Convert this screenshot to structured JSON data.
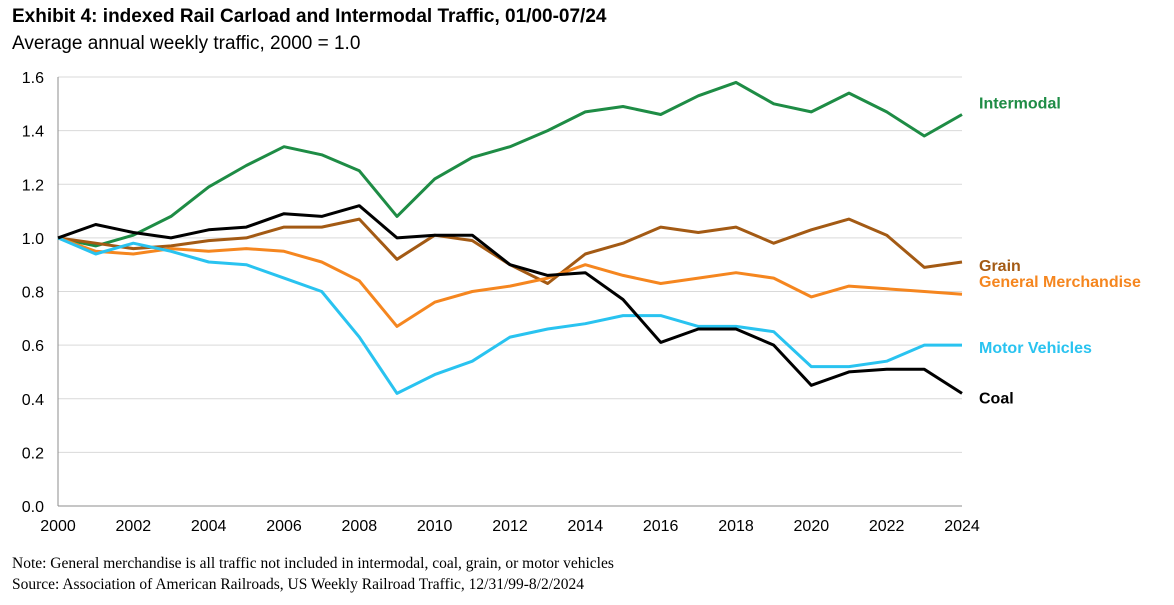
{
  "header": {
    "title": "Exhibit 4: indexed Rail Carload and Intermodal Traffic, 01/00-07/24",
    "subtitle": "Average annual weekly traffic, 2000 = 1.0"
  },
  "footer": {
    "note": "Note: General merchandise is all traffic not included in intermodal, coal, grain, or motor vehicles",
    "source": "Source: Association of American Railroads, US Weekly Railroad Traffic, 12/31/99-8/2/2024"
  },
  "chart_data": {
    "type": "line",
    "title": "Exhibit 4: indexed Rail Carload and Intermodal Traffic, 01/00-07/24",
    "subtitle": "Average annual weekly traffic, 2000 = 1.0",
    "xlabel": "",
    "ylabel": "",
    "xlim": [
      2000,
      2024
    ],
    "ylim": [
      0.0,
      1.6
    ],
    "x_ticks": [
      "2000",
      "2002",
      "2004",
      "2006",
      "2008",
      "2010",
      "2012",
      "2014",
      "2016",
      "2018",
      "2020",
      "2022",
      "2024"
    ],
    "y_ticks": [
      "0.0",
      "0.2",
      "0.4",
      "0.6",
      "0.8",
      "1.0",
      "1.2",
      "1.4",
      "1.6"
    ],
    "grid": "horizontal",
    "legend": "direct labels at right end of lines",
    "x": [
      2000,
      2001,
      2002,
      2003,
      2004,
      2005,
      2006,
      2007,
      2008,
      2009,
      2010,
      2011,
      2012,
      2013,
      2014,
      2015,
      2016,
      2017,
      2018,
      2019,
      2020,
      2021,
      2022,
      2023,
      2024
    ],
    "series": [
      {
        "name": "Intermodal",
        "color": "#1e8c45",
        "values": [
          1.0,
          0.97,
          1.01,
          1.08,
          1.19,
          1.27,
          1.34,
          1.31,
          1.25,
          1.08,
          1.22,
          1.3,
          1.34,
          1.4,
          1.47,
          1.49,
          1.46,
          1.53,
          1.58,
          1.5,
          1.47,
          1.54,
          1.47,
          1.38,
          1.46
        ]
      },
      {
        "name": "Grain",
        "color": "#a35a14",
        "values": [
          1.0,
          0.98,
          0.96,
          0.97,
          0.99,
          1.0,
          1.04,
          1.04,
          1.07,
          0.92,
          1.01,
          0.99,
          0.9,
          0.83,
          0.94,
          0.98,
          1.04,
          1.02,
          1.04,
          0.98,
          1.03,
          1.07,
          1.01,
          0.89,
          0.91
        ]
      },
      {
        "name": "General Merchandise",
        "color": "#f5861f",
        "values": [
          1.0,
          0.95,
          0.94,
          0.96,
          0.95,
          0.96,
          0.95,
          0.91,
          0.84,
          0.67,
          0.76,
          0.8,
          0.82,
          0.85,
          0.9,
          0.86,
          0.83,
          0.85,
          0.87,
          0.85,
          0.78,
          0.82,
          0.81,
          0.8,
          0.79
        ]
      },
      {
        "name": "Motor Vehicles",
        "color": "#29c3f0",
        "values": [
          1.0,
          0.94,
          0.98,
          0.95,
          0.91,
          0.9,
          0.85,
          0.8,
          0.63,
          0.42,
          0.49,
          0.54,
          0.63,
          0.66,
          0.68,
          0.71,
          0.71,
          0.67,
          0.67,
          0.65,
          0.52,
          0.52,
          0.54,
          0.6,
          0.6
        ]
      },
      {
        "name": "Coal",
        "color": "#000000",
        "values": [
          1.0,
          1.05,
          1.02,
          1.0,
          1.03,
          1.04,
          1.09,
          1.08,
          1.12,
          1.0,
          1.01,
          1.01,
          0.9,
          0.86,
          0.87,
          0.77,
          0.61,
          0.66,
          0.66,
          0.6,
          0.45,
          0.5,
          0.51,
          0.51,
          0.42
        ]
      }
    ]
  }
}
